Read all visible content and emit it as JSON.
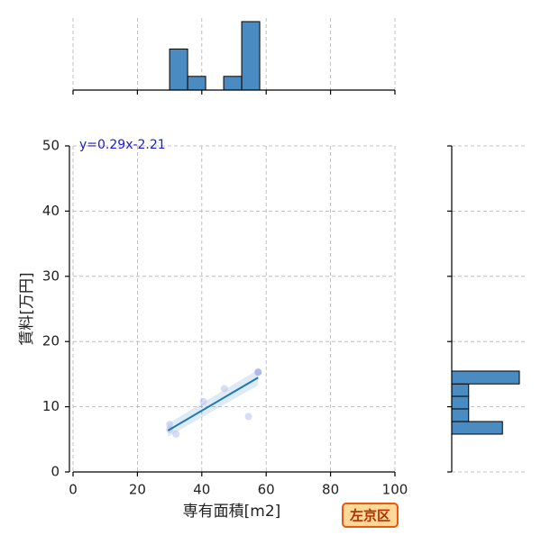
{
  "chart_data": [
    {
      "type": "scatter",
      "x": [
        30,
        30,
        32,
        40.5,
        47,
        54.5,
        57.5,
        57.5,
        57.5,
        57.5
      ],
      "y": [
        6.5,
        7.3,
        5.8,
        10.8,
        12.8,
        8.5,
        15.3,
        15.3,
        15.3,
        15.3
      ],
      "color": "#aab4e6",
      "xlabel": "専有面積[m2]",
      "ylabel": "賃料[万円]",
      "xlim": [
        0,
        100
      ],
      "ylim": [
        0,
        50
      ],
      "xticks": [
        0,
        20,
        40,
        60,
        80,
        100
      ],
      "yticks": [
        0,
        10,
        20,
        30,
        40,
        50
      ],
      "grid": true,
      "annotation": "y=0.29x-2.21",
      "regression": {
        "x": [
          29.5,
          57.5
        ],
        "y": [
          6.35,
          14.47
        ],
        "lower": [
          5.4,
          13.3
        ],
        "upper": [
          7.4,
          15.7
        ],
        "color": "#1f77b4"
      },
      "label": "左京区"
    },
    {
      "type": "histogram",
      "orientation": "vertical",
      "bins": [
        30,
        35.6,
        41.2,
        46.8,
        52.4,
        58
      ],
      "counts": [
        3,
        1,
        0,
        1,
        5
      ],
      "xlim": [
        0,
        100
      ],
      "ylim": [
        0,
        5
      ],
      "xticks": [
        0,
        20,
        40,
        60,
        80,
        100
      ],
      "grid": true,
      "color": "#4a8bc2"
    },
    {
      "type": "histogram",
      "orientation": "horizontal",
      "bins": [
        5.8,
        7.73,
        9.67,
        11.6,
        13.5,
        15.47
      ],
      "counts": [
        3,
        1,
        1,
        1,
        4
      ],
      "xlim": [
        0,
        4
      ],
      "ylim": [
        0,
        50
      ],
      "yticks": [
        0,
        10,
        20,
        30,
        40,
        50
      ],
      "grid": true,
      "color": "#4a8bc2"
    }
  ]
}
